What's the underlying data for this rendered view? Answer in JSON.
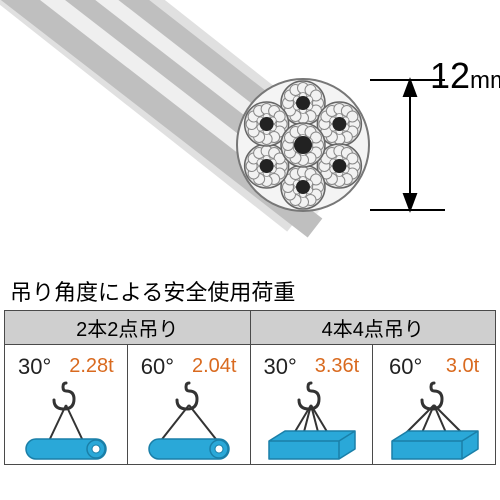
{
  "wire": {
    "diameter_value": "12",
    "diameter_unit": "mm",
    "strand_color": "#e8e8e8",
    "strand_stroke": "#555555",
    "core_color": "#222222"
  },
  "caption": "吊り角度による安全使用荷重",
  "colors": {
    "header_bg": "#cfcfcf",
    "border": "#4a4a4a",
    "load_text": "#d96a1f",
    "rope_color": "#333333",
    "hook_color": "#333333",
    "cylinder_fill": "#2aa8d8",
    "cylinder_stroke": "#1a7fa8",
    "box_fill": "#2aa8d8",
    "box_stroke": "#1a7fa8"
  },
  "table": {
    "groups": [
      {
        "header": "2本2点吊り",
        "shape": "cylinder"
      },
      {
        "header": "4本4点吊り",
        "shape": "box"
      }
    ],
    "cells": [
      {
        "group": 0,
        "angle": "30°",
        "load": "2.28t",
        "spread": 18
      },
      {
        "group": 0,
        "angle": "60°",
        "load": "2.04t",
        "spread": 30
      },
      {
        "group": 1,
        "angle": "30°",
        "load": "3.36t",
        "spread": 18
      },
      {
        "group": 1,
        "angle": "60°",
        "load": "3.0t",
        "spread": 30
      }
    ]
  }
}
